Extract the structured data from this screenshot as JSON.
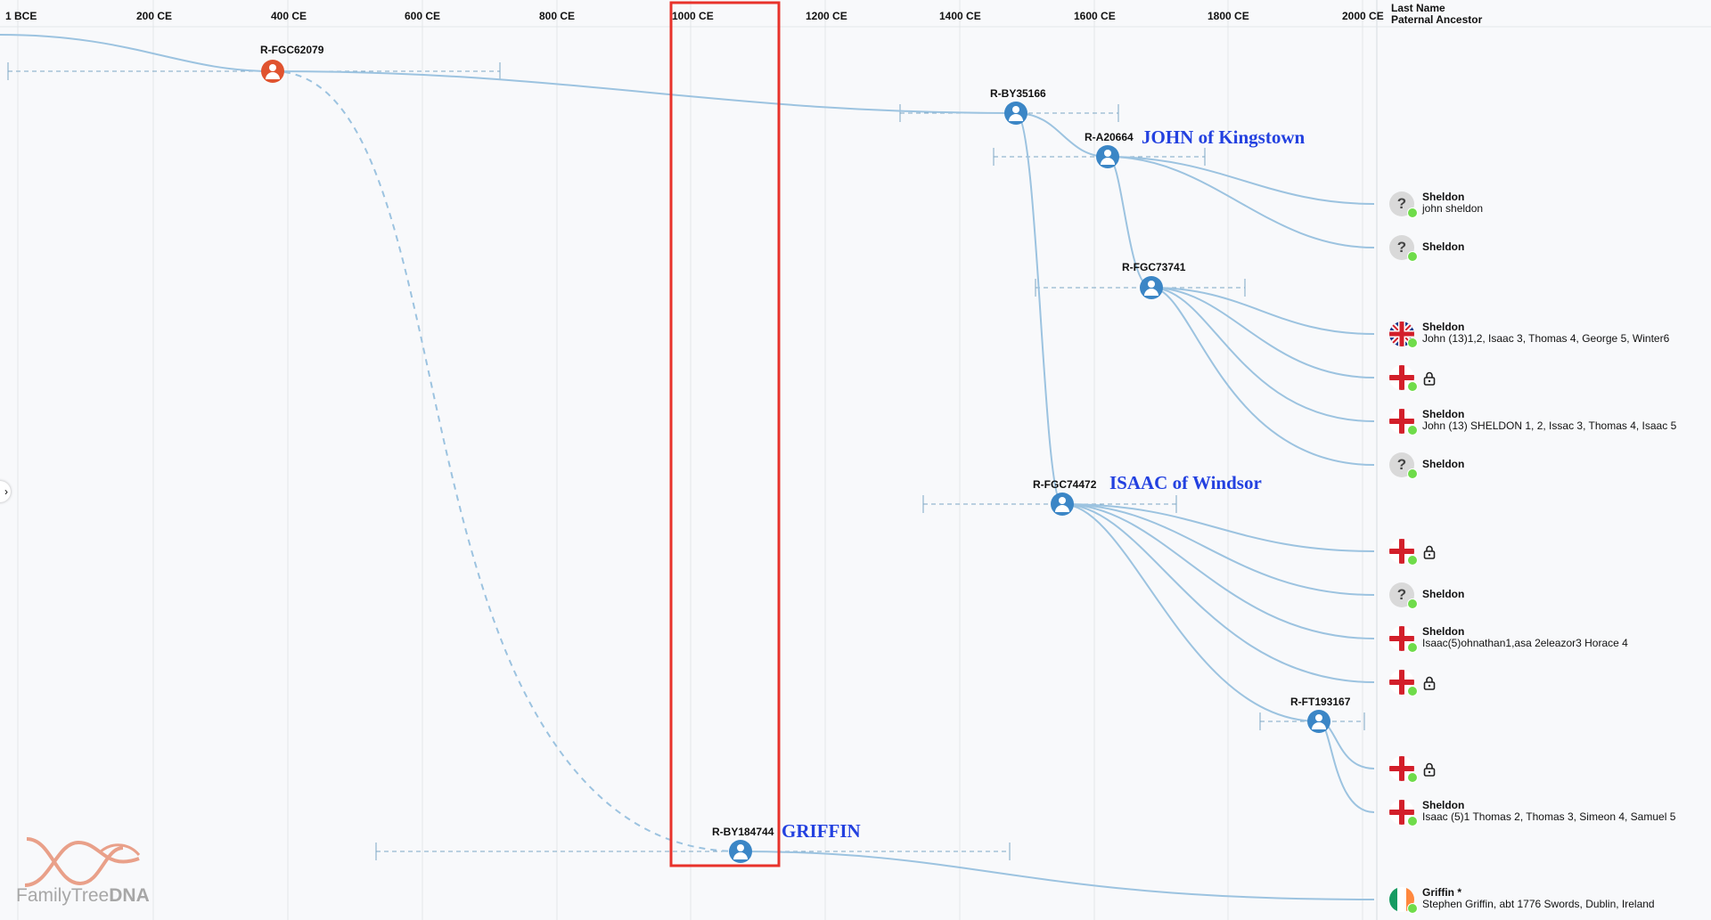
{
  "axis": {
    "ticks": [
      "1 BCE",
      "200 CE",
      "400 CE",
      "600 CE",
      "800 CE",
      "1000 CE",
      "1200 CE",
      "1400 CE",
      "1600 CE",
      "1800 CE",
      "2000 CE"
    ]
  },
  "header": {
    "col1": "Last Name",
    "col2": "Paternal Ancestor"
  },
  "nodes": [
    {
      "id": "R-FGC62079",
      "label": "R-FGC62079",
      "color": "#e0532f"
    },
    {
      "id": "R-BY35166",
      "label": "R-BY35166",
      "color": "#3b86c6"
    },
    {
      "id": "R-A20664",
      "label": "R-A20664",
      "color": "#3b86c6"
    },
    {
      "id": "R-FGC73741",
      "label": "R-FGC73741",
      "color": "#3b86c6"
    },
    {
      "id": "R-FGC74472",
      "label": "R-FGC74472",
      "color": "#3b86c6"
    },
    {
      "id": "R-FT193167",
      "label": "R-FT193167",
      "color": "#3b86c6"
    },
    {
      "id": "R-BY184744",
      "label": "R-BY184744",
      "color": "#3b86c6"
    }
  ],
  "annotations": {
    "john": "JOHN of Kingstown",
    "isaac": "ISAAC of Windsor",
    "griffin": "GRIFFIN"
  },
  "rows": [
    {
      "icon": "unknown",
      "last_name": "Sheldon",
      "ancestor": "john sheldon",
      "locked": false
    },
    {
      "icon": "unknown",
      "last_name": "Sheldon",
      "ancestor": "",
      "locked": false
    },
    {
      "icon": "flag-uk",
      "last_name": "Sheldon",
      "ancestor": "John (13)1,2, Isaac 3, Thomas 4, George 5, Winter6",
      "locked": false
    },
    {
      "icon": "flag-england",
      "last_name": "",
      "ancestor": "",
      "locked": true
    },
    {
      "icon": "flag-england",
      "last_name": "Sheldon",
      "ancestor": "John (13) SHELDON 1, 2, Issac 3, Thomas 4, Isaac 5",
      "locked": false
    },
    {
      "icon": "unknown",
      "last_name": "Sheldon",
      "ancestor": "",
      "locked": false
    },
    {
      "icon": "flag-england",
      "last_name": "",
      "ancestor": "",
      "locked": true
    },
    {
      "icon": "unknown",
      "last_name": "Sheldon",
      "ancestor": "",
      "locked": false
    },
    {
      "icon": "flag-england",
      "last_name": "Sheldon",
      "ancestor": "Isaac(5)ohnathan1,asa 2eleazor3 Horace 4",
      "locked": false
    },
    {
      "icon": "flag-england",
      "last_name": "",
      "ancestor": "",
      "locked": true
    },
    {
      "icon": "flag-england",
      "last_name": "",
      "ancestor": "",
      "locked": true
    },
    {
      "icon": "flag-england",
      "last_name": "Sheldon",
      "ancestor": "Isaac (5)1 Thomas 2, Thomas 3, Simeon 4, Samuel 5",
      "locked": false
    },
    {
      "icon": "flag-ireland",
      "last_name": "Griffin *",
      "ancestor": "Stephen Griffin, abt 1776 Swords, Dublin, Ireland",
      "locked": false
    }
  ],
  "logo": {
    "text_light": "FamilyTree",
    "text_bold": "DNA"
  },
  "colors": {
    "branch": "#9cc3e0",
    "highlight_box": "#e8322b",
    "annotation": "#2341e0",
    "status_dot": "#6fdc4a"
  }
}
